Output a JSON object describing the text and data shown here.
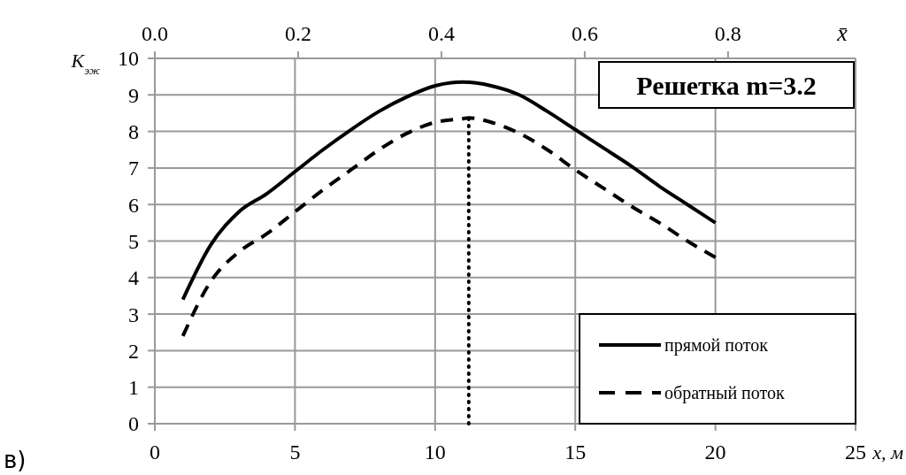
{
  "chart_data": {
    "type": "line",
    "xlabel": "x, м",
    "ylabel": "K$_{эж}$",
    "x2label": "x̄",
    "xlim": [
      0,
      25
    ],
    "xticks": [
      0,
      5,
      10,
      15,
      20,
      25
    ],
    "ylim": [
      0,
      10
    ],
    "yticks": [
      0,
      1,
      2,
      3,
      4,
      5,
      6,
      7,
      8,
      9,
      10
    ],
    "x2lim": [
      0,
      0.978
    ],
    "x2ticks": [
      {
        "value": 0,
        "label": "0.0"
      },
      0.2,
      0.4,
      0.6,
      0.8
    ],
    "grid": true,
    "legend": "bottom right",
    "marker": "none",
    "series": [
      {
        "name": "прямой поток",
        "color": "#000000",
        "line_style": "solid",
        "x": [
          1,
          2,
          3,
          4,
          5,
          6,
          7,
          8,
          9,
          10,
          11,
          12,
          13,
          14,
          15,
          16,
          17,
          18,
          19,
          20
        ],
        "values": [
          3.4,
          4.9,
          5.8,
          6.3,
          6.9,
          7.5,
          8.05,
          8.55,
          8.95,
          9.25,
          9.35,
          9.25,
          9.0,
          8.55,
          8.05,
          7.55,
          7.05,
          6.5,
          6.0,
          5.5
        ]
      },
      {
        "name": "обратный поток",
        "color": "#000000",
        "line_style": "dashed",
        "x": [
          1,
          2,
          3,
          4,
          5,
          6,
          7,
          8,
          9,
          10,
          11,
          11.2,
          12,
          13,
          14,
          15,
          16,
          17,
          18,
          19,
          20
        ],
        "values": [
          2.4,
          3.9,
          4.7,
          5.2,
          5.8,
          6.4,
          6.95,
          7.5,
          7.95,
          8.25,
          8.35,
          8.37,
          8.25,
          7.95,
          7.5,
          6.95,
          6.45,
          5.95,
          5.5,
          5.0,
          4.55
        ]
      }
    ],
    "ref_lines": [
      {
        "axis": "x",
        "value": 11.2,
        "line_style": "dotted",
        "color": "#000000"
      }
    ],
    "annotations": [
      "Решетка m=3.2",
      "в)"
    ]
  }
}
